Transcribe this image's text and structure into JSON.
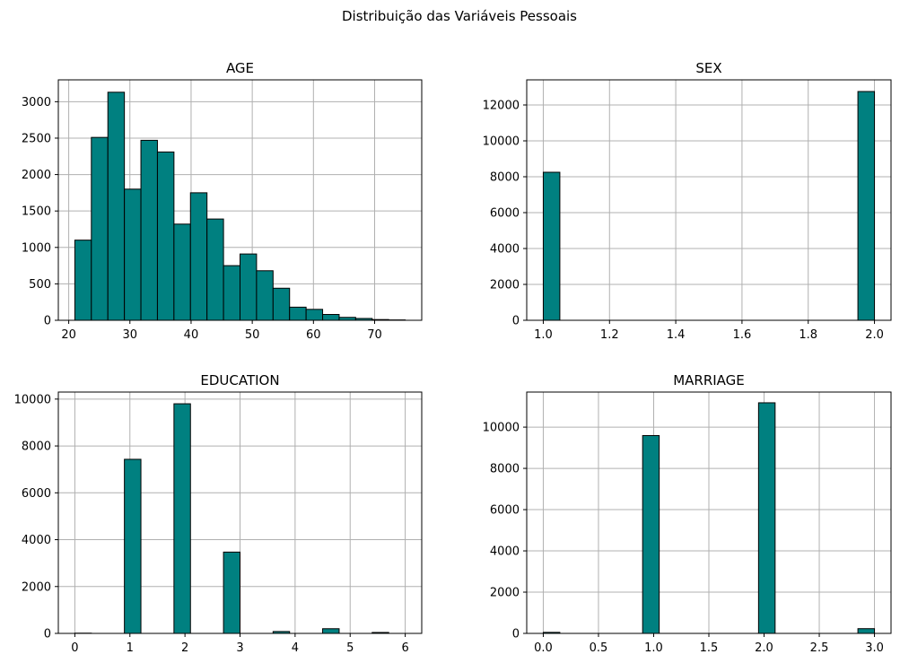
{
  "figure": {
    "title": "Distribuição das Variáveis Pessoais"
  },
  "colors": {
    "bar_fill": "#008080",
    "bar_edge": "#000000",
    "grid": "#b0b0b0"
  },
  "chart_data": [
    {
      "type": "bar",
      "title": "AGE",
      "xlabel": "",
      "ylabel": "",
      "grid": true,
      "xlim": [
        18.3,
        77.7
      ],
      "ylim": [
        0,
        3300
      ],
      "xticks": [
        20,
        30,
        40,
        50,
        60,
        70
      ],
      "yticks": [
        0,
        500,
        1000,
        1500,
        2000,
        2500,
        3000
      ],
      "bin_edges": [
        21,
        23.7,
        26.4,
        29.1,
        31.8,
        34.5,
        37.2,
        39.9,
        42.6,
        45.3,
        48,
        50.7,
        53.4,
        56.1,
        58.8,
        61.5,
        64.2,
        66.9,
        69.6,
        72.3,
        75
      ],
      "values": [
        1100,
        2510,
        3130,
        1800,
        2470,
        2310,
        1320,
        1750,
        1390,
        750,
        910,
        680,
        440,
        180,
        150,
        80,
        40,
        25,
        10,
        5
      ]
    },
    {
      "type": "bar",
      "title": "SEX",
      "xlabel": "",
      "ylabel": "",
      "grid": true,
      "xlim": [
        0.95,
        2.05
      ],
      "ylim": [
        0,
        13400
      ],
      "xticks": [
        1.0,
        1.2,
        1.4,
        1.6,
        1.8,
        2.0
      ],
      "yticks": [
        0,
        2000,
        4000,
        6000,
        8000,
        10000,
        12000
      ],
      "bin_edges": [
        1.0,
        1.05,
        1.1,
        1.15,
        1.2,
        1.25,
        1.3,
        1.35,
        1.4,
        1.45,
        1.5,
        1.55,
        1.6,
        1.65,
        1.7,
        1.75,
        1.8,
        1.85,
        1.9,
        1.95,
        2.0
      ],
      "values": [
        8250,
        0,
        0,
        0,
        0,
        0,
        0,
        0,
        0,
        0,
        0,
        0,
        0,
        0,
        0,
        0,
        0,
        0,
        0,
        12750
      ]
    },
    {
      "type": "bar",
      "title": "EDUCATION",
      "xlabel": "",
      "ylabel": "",
      "grid": true,
      "xlim": [
        -0.3,
        6.3
      ],
      "ylim": [
        0,
        10300
      ],
      "xticks": [
        0,
        1,
        2,
        3,
        4,
        5,
        6
      ],
      "yticks": [
        0,
        2000,
        4000,
        6000,
        8000,
        10000
      ],
      "bin_edges": [
        0,
        0.3,
        0.6,
        0.9,
        1.2,
        1.5,
        1.8,
        2.1,
        2.4,
        2.7,
        3.0,
        3.3,
        3.6,
        3.9,
        4.2,
        4.5,
        4.8,
        5.1,
        5.4,
        5.7,
        6.0
      ],
      "values": [
        10,
        0,
        0,
        7430,
        0,
        0,
        9800,
        0,
        0,
        3470,
        0,
        0,
        80,
        0,
        0,
        200,
        0,
        0,
        40,
        0
      ]
    },
    {
      "type": "bar",
      "title": "MARRIAGE",
      "xlabel": "",
      "ylabel": "",
      "grid": true,
      "xlim": [
        -0.15,
        3.15
      ],
      "ylim": [
        0,
        11700
      ],
      "xticks": [
        0.0,
        0.5,
        1.0,
        1.5,
        2.0,
        2.5,
        3.0
      ],
      "yticks": [
        0,
        2000,
        4000,
        6000,
        8000,
        10000
      ],
      "bin_edges": [
        0,
        0.15,
        0.3,
        0.45,
        0.6,
        0.75,
        0.9,
        1.05,
        1.2,
        1.35,
        1.5,
        1.65,
        1.8,
        1.95,
        2.1,
        2.25,
        2.4,
        2.55,
        2.7,
        2.85,
        3.0
      ],
      "values": [
        50,
        0,
        0,
        0,
        0,
        0,
        9590,
        0,
        0,
        0,
        0,
        0,
        0,
        11180,
        0,
        0,
        0,
        0,
        0,
        230
      ]
    }
  ]
}
